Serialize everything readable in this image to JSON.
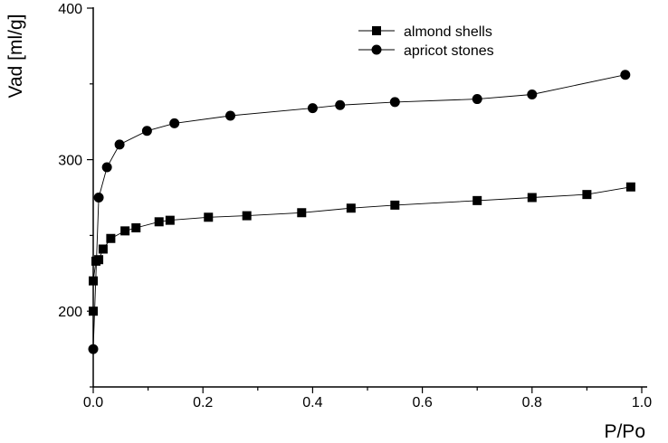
{
  "chart_data": {
    "type": "line",
    "title": "",
    "xlabel": "P/Po",
    "ylabel": "Vad [ml/g]",
    "xlim": [
      0,
      1
    ],
    "ylim": [
      150,
      400
    ],
    "x_ticks": [
      "0.0",
      "0.2",
      "0.4",
      "0.6",
      "0.8",
      "1.0"
    ],
    "y_ticks": [
      "200",
      "300",
      "400"
    ],
    "grid": false,
    "legend_position": "top-right",
    "series": [
      {
        "name": "almond shells",
        "marker": "square",
        "x": [
          0.0,
          0.0,
          0.005,
          0.01,
          0.018,
          0.032,
          0.058,
          0.078,
          0.12,
          0.14,
          0.21,
          0.28,
          0.38,
          0.47,
          0.55,
          0.7,
          0.8,
          0.9,
          0.98
        ],
        "y": [
          200,
          220,
          233,
          234,
          241,
          248,
          253,
          255,
          259,
          260,
          262,
          263,
          265,
          268,
          270,
          273,
          275,
          277,
          282
        ]
      },
      {
        "name": "apricot stones",
        "marker": "circle",
        "x": [
          0.0,
          0.01,
          0.025,
          0.048,
          0.098,
          0.148,
          0.25,
          0.4,
          0.45,
          0.55,
          0.7,
          0.8,
          0.97
        ],
        "y": [
          175,
          275,
          295,
          310,
          319,
          324,
          329,
          334,
          336,
          338,
          340,
          343,
          356
        ]
      }
    ]
  }
}
